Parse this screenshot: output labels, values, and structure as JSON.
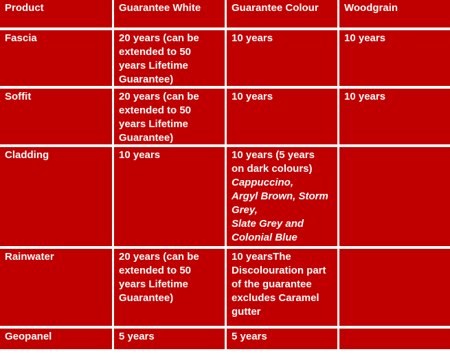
{
  "table": {
    "header": [
      "Product",
      "Guarantee White",
      "Guarantee Colour",
      "Woodgrain"
    ],
    "rows": [
      [
        [
          "Fascia"
        ],
        [
          "20 years (can be",
          "extended to 50",
          "years Lifetime",
          "Guarantee)"
        ],
        [
          "10 years"
        ],
        [
          "10 years"
        ]
      ],
      [
        [
          "Soffit"
        ],
        [
          "20 years (can be",
          "extended to 50",
          "years Lifetime",
          "Guarantee)"
        ],
        [
          "10 years"
        ],
        [
          "10 years"
        ]
      ],
      [
        [
          "Cladding"
        ],
        [
          "10 years"
        ],
        [
          "10 years (5 years",
          "on dark colours)",
          "Cappuccino,",
          "Argyl Brown, Storm",
          "Grey,",
          "Slate Grey and",
          "Colonial Blue"
        ],
        null
      ],
      [
        [
          "Rainwater"
        ],
        [
          "20 years (can be",
          "extended to 50",
          "years Lifetime",
          "Guarantee)"
        ],
        [
          "10 yearsThe",
          "Discolouration part",
          "of the guarantee",
          "excludes Caramel",
          "gutter"
        ],
        null
      ],
      [
        [
          "Geopanel"
        ],
        [
          "5 years"
        ],
        [
          "5 years"
        ],
        null
      ]
    ]
  }
}
